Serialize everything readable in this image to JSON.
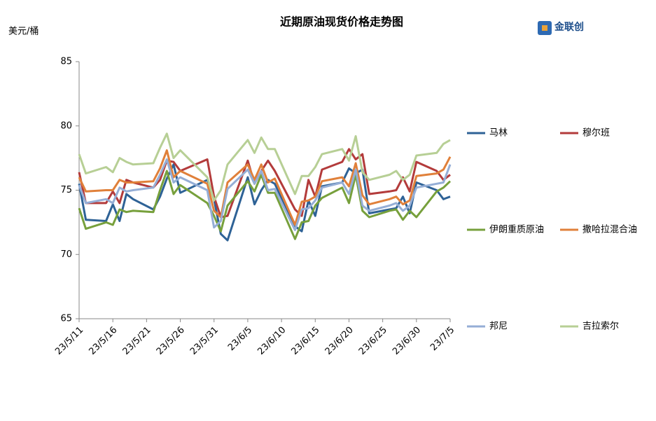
{
  "chart_data": {
    "type": "line",
    "title": "近期原油现货价格走势图",
    "y_label": "美元/桶",
    "logo": "金联创",
    "x": [
      "23/5/11",
      "23/5/12",
      "23/5/15",
      "23/5/16",
      "23/5/17",
      "23/5/18",
      "23/5/19",
      "23/5/22",
      "23/5/23",
      "23/5/24",
      "23/5/25",
      "23/5/26",
      "23/5/30",
      "23/5/31",
      "23/6/1",
      "23/6/2",
      "23/6/5",
      "23/6/6",
      "23/6/7",
      "23/6/8",
      "23/6/9",
      "23/6/12",
      "23/6/13",
      "23/6/14",
      "23/6/15",
      "23/6/16",
      "23/6/19",
      "23/6/20",
      "23/6/21",
      "23/6/22",
      "23/6/23",
      "23/6/26",
      "23/6/27",
      "23/6/28",
      "23/6/29",
      "23/6/30",
      "23/7/3",
      "23/7/4",
      "23/7/5"
    ],
    "xlim": [
      "23/5/11",
      "23/7/5"
    ],
    "xticks": [
      "23/5/11",
      "23/5/16",
      "23/5/21",
      "23/5/26",
      "23/5/31",
      "23/6/5",
      "23/6/10",
      "23/6/15",
      "23/6/20",
      "23/6/25",
      "23/6/30",
      "23/7/5"
    ],
    "ylim": [
      65,
      85
    ],
    "yticks": [
      65,
      70,
      75,
      80,
      85
    ],
    "grid": false,
    "legend": "right",
    "series": [
      {
        "name": "马林",
        "color": "#2e6296",
        "values": [
          75.5,
          72.7,
          72.6,
          73.9,
          72.6,
          74.7,
          74.3,
          73.5,
          74.5,
          75.9,
          77.0,
          74.8,
          75.8,
          74.3,
          71.6,
          71.1,
          76.0,
          73.9,
          75.0,
          75.8,
          75.5,
          72.2,
          71.8,
          74.2,
          73.0,
          75.3,
          75.6,
          76.7,
          76.3,
          76.6,
          73.2,
          73.5,
          73.6,
          74.5,
          73.2,
          75.6,
          75.0,
          74.3,
          74.5
        ]
      },
      {
        "name": "穆尔班",
        "color": "#b33b3b",
        "values": [
          76.4,
          74.0,
          74.0,
          74.9,
          74.0,
          75.8,
          75.6,
          75.2,
          75.8,
          77.3,
          77.2,
          76.5,
          77.4,
          74.5,
          72.9,
          73.0,
          77.3,
          75.5,
          76.5,
          77.3,
          76.5,
          73.5,
          73.0,
          75.8,
          74.5,
          76.6,
          77.2,
          78.2,
          77.4,
          77.8,
          74.7,
          74.9,
          75.0,
          76.0,
          74.9,
          77.2,
          76.5,
          75.8,
          76.2
        ]
      },
      {
        "name": "伊朗重质原油",
        "color": "#77a03c",
        "values": [
          73.6,
          72.0,
          72.5,
          72.3,
          73.5,
          73.3,
          73.4,
          73.3,
          75.0,
          76.5,
          74.7,
          75.4,
          74.0,
          73.0,
          71.8,
          73.8,
          75.7,
          74.9,
          76.2,
          74.8,
          74.8,
          71.2,
          72.5,
          72.6,
          73.8,
          74.4,
          75.2,
          74.0,
          76.2,
          73.4,
          72.9,
          73.4,
          73.5,
          72.7,
          73.4,
          72.9,
          74.9,
          75.2,
          75.7
        ]
      },
      {
        "name": "撒哈拉混合油",
        "color": "#e0803a",
        "values": [
          76.0,
          74.9,
          75.0,
          75.0,
          75.8,
          75.6,
          75.6,
          75.7,
          76.7,
          78.1,
          76.0,
          76.5,
          75.5,
          73.4,
          72.9,
          75.6,
          77.0,
          75.8,
          77.0,
          75.6,
          75.9,
          72.3,
          74.1,
          74.2,
          74.5,
          75.7,
          76.0,
          75.3,
          77.1,
          74.6,
          73.9,
          74.3,
          74.5,
          73.9,
          74.2,
          76.1,
          76.3,
          76.6,
          77.6
        ]
      },
      {
        "name": "邦尼",
        "color": "#95aed6",
        "values": [
          75.4,
          74.0,
          74.3,
          74.0,
          75.2,
          74.9,
          75.0,
          75.2,
          76.2,
          77.4,
          75.6,
          76.0,
          75.0,
          72.1,
          72.6,
          75.1,
          76.6,
          75.5,
          76.5,
          75.0,
          75.1,
          71.9,
          73.5,
          73.6,
          74.2,
          75.2,
          75.6,
          74.7,
          76.6,
          73.8,
          73.4,
          73.8,
          74.0,
          73.4,
          73.8,
          75.2,
          75.5,
          75.6,
          77.0
        ]
      },
      {
        "name": "吉拉索尔",
        "color": "#b7cf95",
        "values": [
          77.8,
          76.3,
          76.8,
          76.4,
          77.5,
          77.2,
          77.0,
          77.1,
          78.3,
          79.4,
          77.5,
          78.1,
          76.0,
          74.2,
          75.0,
          77.0,
          78.9,
          77.9,
          79.1,
          78.2,
          78.2,
          74.7,
          76.1,
          76.1,
          76.8,
          77.8,
          78.2,
          77.3,
          79.2,
          76.4,
          75.8,
          76.2,
          76.5,
          75.8,
          76.2,
          77.7,
          77.9,
          78.6,
          78.9
        ]
      }
    ]
  }
}
